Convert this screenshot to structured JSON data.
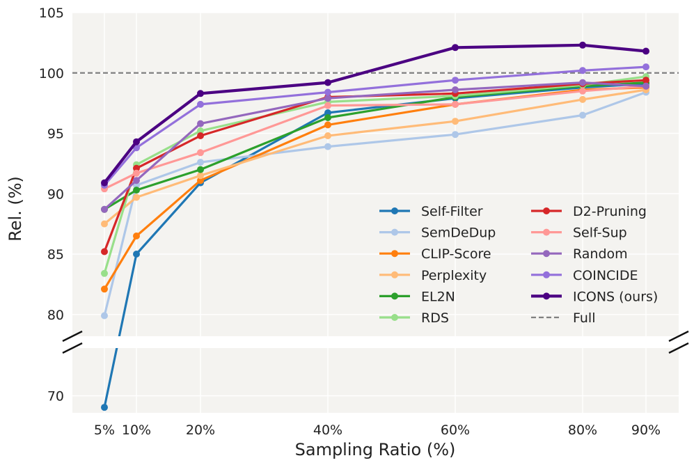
{
  "chart_data": {
    "type": "line",
    "title": "",
    "xlabel": "Sampling Ratio (%)",
    "ylabel": "Rel. (%)",
    "x": [
      5,
      10,
      20,
      40,
      60,
      80,
      90
    ],
    "x_tick_labels": [
      "5%",
      "10%",
      "20%",
      "40%",
      "60%",
      "80%",
      "90%"
    ],
    "y_upper_ticks": [
      80,
      85,
      90,
      95,
      100,
      105
    ],
    "y_lower_ticks": [
      70
    ],
    "y_upper_range": [
      78.2,
      105
    ],
    "y_lower_range": [
      67.5,
      77
    ],
    "broken_y_axis": true,
    "grid": true,
    "legend_position": "lower-right",
    "reference_line": {
      "name": "Full",
      "y": 100,
      "color": "#808080",
      "style": "dashed"
    },
    "series": [
      {
        "name": "Self-Filter",
        "color": "#1f77b4",
        "values": [
          68.3,
          85.0,
          90.9,
          96.7,
          97.9,
          98.8,
          99.1
        ]
      },
      {
        "name": "SemDeDup",
        "color": "#aec7e8",
        "values": [
          79.9,
          90.7,
          92.6,
          93.9,
          94.9,
          96.5,
          98.4
        ]
      },
      {
        "name": "CLIP-Score",
        "color": "#ff7f0e",
        "values": [
          82.1,
          86.5,
          91.1,
          95.7,
          97.4,
          98.6,
          98.8
        ]
      },
      {
        "name": "Perplexity",
        "color": "#ffbb78",
        "values": [
          87.5,
          89.7,
          91.5,
          94.8,
          96.0,
          97.8,
          98.6
        ]
      },
      {
        "name": "EL2N",
        "color": "#2ca02c",
        "values": [
          88.7,
          90.3,
          92.0,
          96.3,
          98.0,
          98.9,
          99.2
        ]
      },
      {
        "name": "RDS",
        "color": "#98df8a",
        "values": [
          83.4,
          92.4,
          95.2,
          97.6,
          98.1,
          99.0,
          99.7
        ]
      },
      {
        "name": "D2-Pruning",
        "color": "#d62728",
        "values": [
          85.2,
          92.1,
          94.8,
          98.0,
          98.3,
          99.1,
          99.4
        ]
      },
      {
        "name": "Self-Sup",
        "color": "#ff9896",
        "values": [
          90.4,
          91.7,
          93.4,
          97.3,
          97.4,
          98.5,
          98.9
        ]
      },
      {
        "name": "Random",
        "color": "#9467bd",
        "values": [
          88.7,
          91.1,
          95.8,
          97.9,
          98.6,
          99.2,
          98.9
        ]
      },
      {
        "name": "COINCIDE",
        "color": "#9370db",
        "values": [
          90.7,
          93.8,
          97.4,
          98.4,
          99.4,
          100.2,
          100.5
        ]
      },
      {
        "name": "ICONS (ours)",
        "color": "#4b0082",
        "values": [
          90.9,
          94.3,
          98.3,
          99.2,
          102.1,
          102.3,
          101.8
        ]
      }
    ],
    "legend_entries": [
      "Self-Filter",
      "SemDeDup",
      "CLIP-Score",
      "Perplexity",
      "EL2N",
      "RDS",
      "D2-Pruning",
      "Self-Sup",
      "Random",
      "COINCIDE",
      "ICONS (ours)",
      "Full"
    ]
  }
}
